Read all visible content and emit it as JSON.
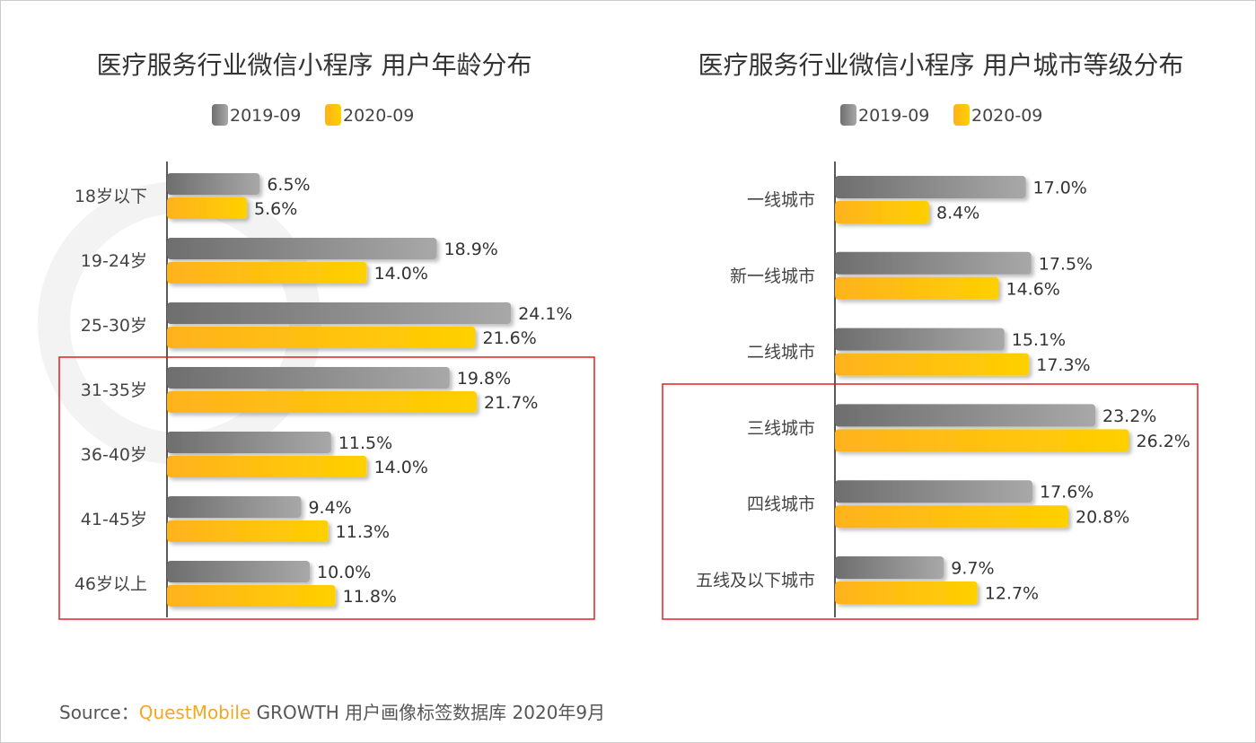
{
  "chart_data": [
    {
      "type": "bar",
      "orientation": "horizontal",
      "title": "医疗服务行业微信小程序 用户年龄分布",
      "categories": [
        "18岁以下",
        "19-24岁",
        "25-30岁",
        "31-35岁",
        "36-40岁",
        "41-45岁",
        "46岁以上"
      ],
      "series": [
        {
          "name": "2019-09",
          "values": [
            6.5,
            18.9,
            24.1,
            19.8,
            11.5,
            9.4,
            10.0
          ],
          "labels": [
            "6.5%",
            "18.9%",
            "24.1%",
            "19.8%",
            "11.5%",
            "9.4%",
            "10.0%"
          ],
          "color": "#8c8c8c"
        },
        {
          "name": "2020-09",
          "values": [
            5.6,
            14.0,
            21.6,
            21.7,
            14.0,
            11.3,
            11.8
          ],
          "labels": [
            "5.6%",
            "14.0%",
            "21.6%",
            "21.7%",
            "14.0%",
            "11.3%",
            "11.8%"
          ],
          "color": "#ffc000"
        }
      ],
      "highlight_categories": [
        "31-35岁",
        "36-40岁",
        "41-45岁",
        "46岁以上"
      ],
      "legend": "top-center",
      "grid": false
    },
    {
      "type": "bar",
      "orientation": "horizontal",
      "title": "医疗服务行业微信小程序 用户城市等级分布",
      "categories": [
        "一线城市",
        "新一线城市",
        "二线城市",
        "三线城市",
        "四线城市",
        "五线及以下城市"
      ],
      "series": [
        {
          "name": "2019-09",
          "values": [
            17.0,
            17.5,
            15.1,
            23.2,
            17.6,
            9.7
          ],
          "labels": [
            "17.0%",
            "17.5%",
            "15.1%",
            "23.2%",
            "17.6%",
            "9.7%"
          ],
          "color": "#8c8c8c"
        },
        {
          "name": "2020-09",
          "values": [
            8.4,
            14.6,
            17.3,
            26.2,
            20.8,
            12.7
          ],
          "labels": [
            "8.4%",
            "14.6%",
            "17.3%",
            "26.2%",
            "20.8%",
            "12.7%"
          ],
          "color": "#ffc000"
        }
      ],
      "highlight_categories": [
        "三线城市",
        "四线城市",
        "五线及以下城市"
      ],
      "legend": "top-center",
      "grid": false
    }
  ],
  "highlight_color": "#e02020",
  "watermark": "QUESTMOBILE",
  "source": {
    "prefix": "Source：",
    "brand": "QuestMobile",
    "text": " GROWTH 用户画像标签数据库 2020年9月"
  }
}
